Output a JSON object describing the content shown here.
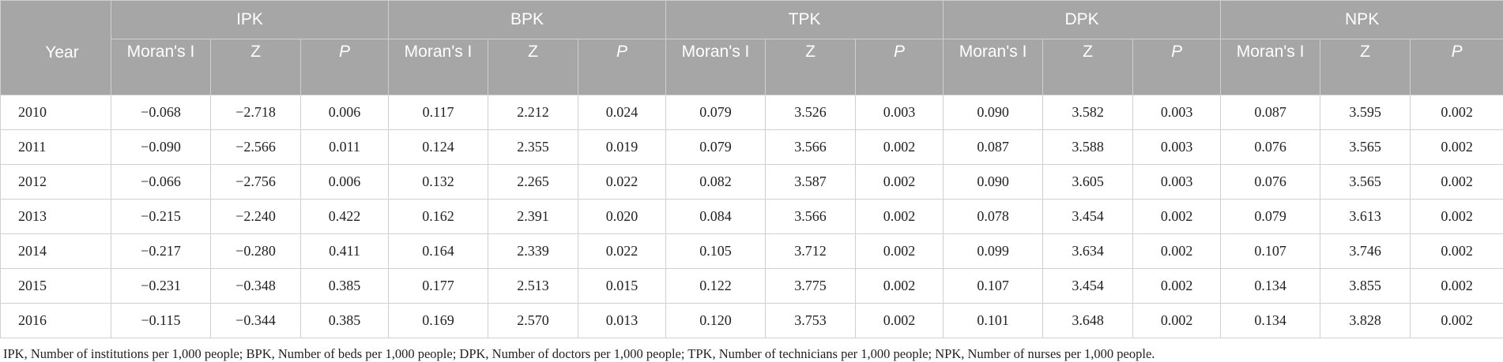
{
  "table": {
    "year_header": "Year",
    "groups": [
      "IPK",
      "BPK",
      "TPK",
      "DPK",
      "NPK"
    ],
    "sub_headers": [
      "Moran's I",
      "Z",
      "P"
    ],
    "rows": [
      {
        "year": "2010",
        "values": [
          "−0.068",
          "−2.718",
          "0.006",
          "0.117",
          "2.212",
          "0.024",
          "0.079",
          "3.526",
          "0.003",
          "0.090",
          "3.582",
          "0.003",
          "0.087",
          "3.595",
          "0.002"
        ]
      },
      {
        "year": "2011",
        "values": [
          "−0.090",
          "−2.566",
          "0.011",
          "0.124",
          "2.355",
          "0.019",
          "0.079",
          "3.566",
          "0.002",
          "0.087",
          "3.588",
          "0.003",
          "0.076",
          "3.565",
          "0.002"
        ]
      },
      {
        "year": "2012",
        "values": [
          "−0.066",
          "−2.756",
          "0.006",
          "0.132",
          "2.265",
          "0.022",
          "0.082",
          "3.587",
          "0.002",
          "0.090",
          "3.605",
          "0.003",
          "0.076",
          "3.565",
          "0.002"
        ]
      },
      {
        "year": "2013",
        "values": [
          "−0.215",
          "−2.240",
          "0.422",
          "0.162",
          "2.391",
          "0.020",
          "0.084",
          "3.566",
          "0.002",
          "0.078",
          "3.454",
          "0.002",
          "0.079",
          "3.613",
          "0.002"
        ]
      },
      {
        "year": "2014",
        "values": [
          "−0.217",
          "−0.280",
          "0.411",
          "0.164",
          "2.339",
          "0.022",
          "0.105",
          "3.712",
          "0.002",
          "0.099",
          "3.634",
          "0.002",
          "0.107",
          "3.746",
          "0.002"
        ]
      },
      {
        "year": "2015",
        "values": [
          "−0.231",
          "−0.348",
          "0.385",
          "0.177",
          "2.513",
          "0.015",
          "0.122",
          "3.775",
          "0.002",
          "0.107",
          "3.454",
          "0.002",
          "0.134",
          "3.855",
          "0.002"
        ]
      },
      {
        "year": "2016",
        "values": [
          "−0.115",
          "−0.344",
          "0.385",
          "0.169",
          "2.570",
          "0.013",
          "0.120",
          "3.753",
          "0.002",
          "0.101",
          "3.648",
          "0.002",
          "0.134",
          "3.828",
          "0.002"
        ]
      }
    ]
  },
  "footnote": "IPK, Number of institutions per 1,000 people; BPK, Number of beds per 1,000 people; DPK, Number of doctors per 1,000 people; TPK, Number of technicians per 1,000 people; NPK, Number of nurses per 1,000 people."
}
